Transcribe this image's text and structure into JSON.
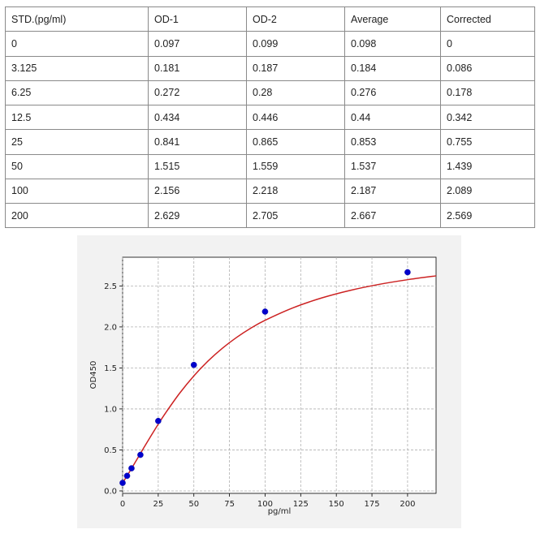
{
  "table": {
    "headers": [
      "STD.(pg/ml)",
      "OD-1",
      "OD-2",
      "Average",
      "Corrected"
    ],
    "rows": [
      [
        "0",
        "0.097",
        "0.099",
        "0.098",
        "0"
      ],
      [
        "3.125",
        "0.181",
        "0.187",
        "0.184",
        "0.086"
      ],
      [
        "6.25",
        "0.272",
        "0.28",
        "0.276",
        "0.178"
      ],
      [
        "12.5",
        "0.434",
        "0.446",
        "0.44",
        "0.342"
      ],
      [
        "25",
        "0.841",
        "0.865",
        "0.853",
        "0.755"
      ],
      [
        "50",
        "1.515",
        "1.559",
        "1.537",
        "1.439"
      ],
      [
        "100",
        "2.156",
        "2.218",
        "2.187",
        "2.089"
      ],
      [
        "200",
        "2.629",
        "2.705",
        "2.667",
        "2.569"
      ]
    ]
  },
  "chart_data": {
    "type": "scatter",
    "title": "",
    "xlabel": "pg/ml",
    "ylabel": "OD450",
    "xlim": [
      0,
      220
    ],
    "ylim": [
      -0.03,
      2.85
    ],
    "xticks": [
      0,
      25,
      50,
      75,
      100,
      125,
      150,
      175,
      200
    ],
    "xtick_labels": [
      "0",
      "25",
      "50",
      "75",
      "100",
      "125",
      "150",
      "175",
      "200"
    ],
    "yticks": [
      0,
      0.5,
      1.0,
      1.5,
      2.0,
      2.5
    ],
    "ytick_labels": [
      "0.0",
      "0.5",
      "1.0",
      "1.5",
      "2.0",
      "2.5"
    ],
    "grid": true,
    "series": [
      {
        "kind": "points",
        "color": "#0000cc",
        "x": [
          0,
          3.125,
          6.25,
          12.5,
          25,
          50,
          100,
          200
        ],
        "y": [
          0.098,
          0.184,
          0.276,
          0.44,
          0.853,
          1.537,
          2.187,
          2.667
        ]
      },
      {
        "kind": "fit-curve",
        "color": "#cc2222",
        "x": [
          0,
          5,
          10,
          15,
          20,
          25,
          30,
          40,
          50,
          60,
          70,
          80,
          90,
          100,
          120,
          140,
          160,
          180,
          200,
          220
        ],
        "y": [
          0.098,
          0.237,
          0.383,
          0.53,
          0.674,
          0.814,
          0.947,
          1.191,
          1.403,
          1.585,
          1.74,
          1.872,
          1.985,
          2.081,
          2.236,
          2.355,
          2.447,
          2.519,
          2.576,
          2.623
        ]
      }
    ]
  }
}
